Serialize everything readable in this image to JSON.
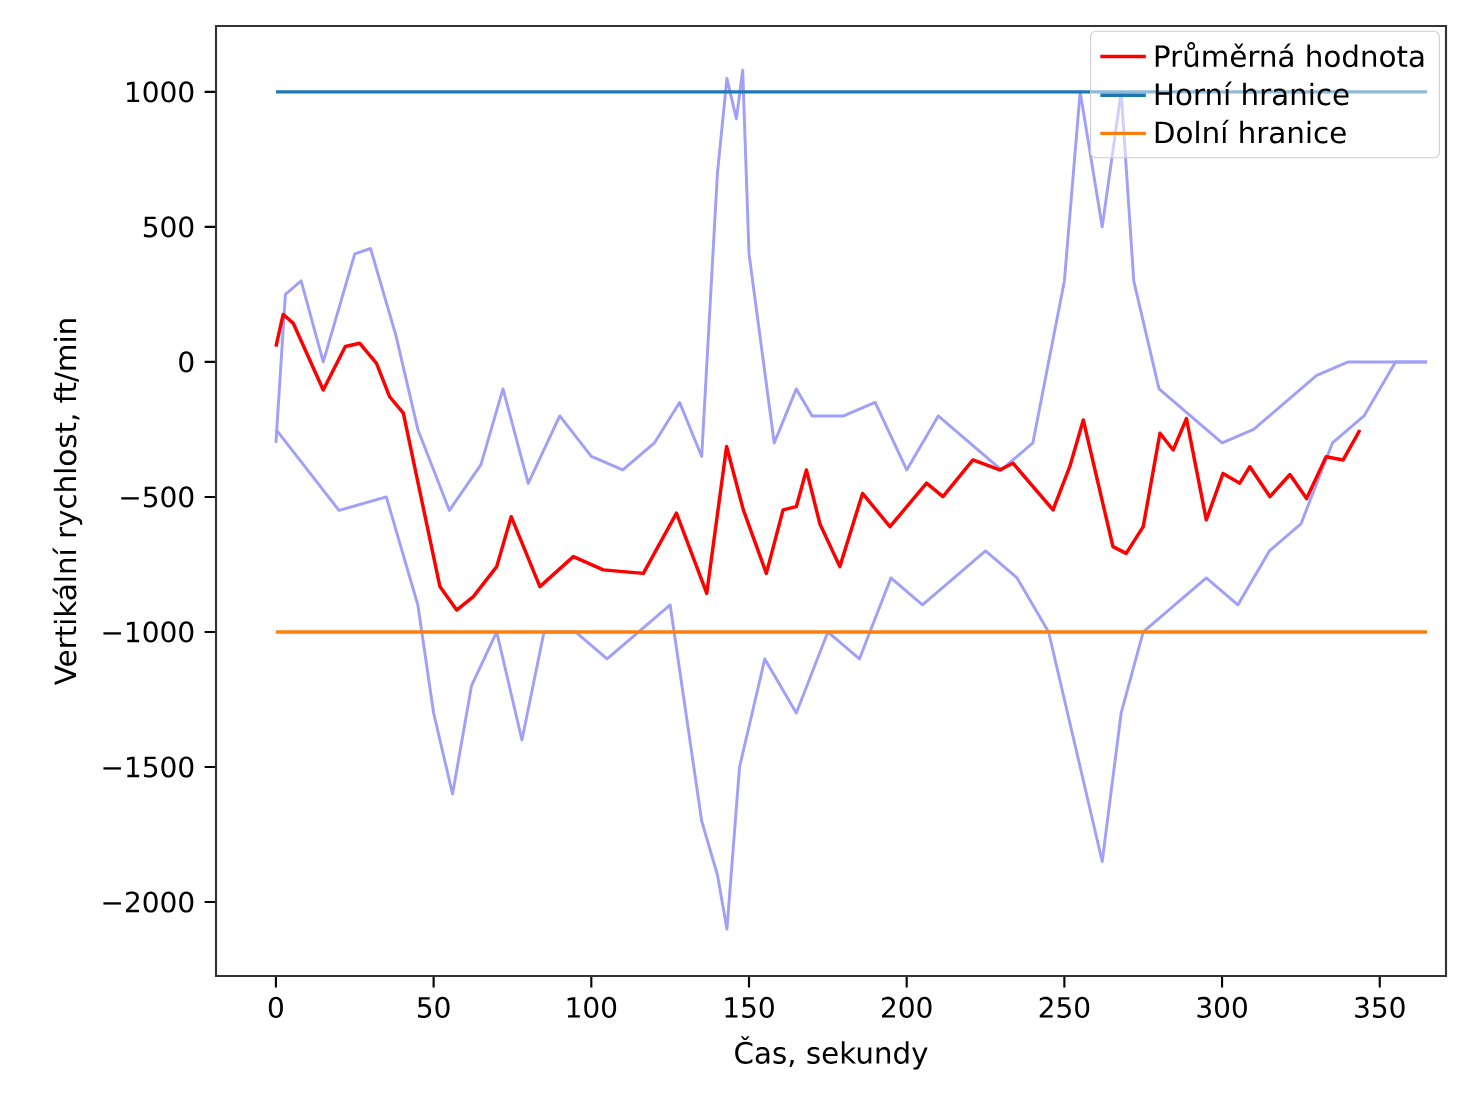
{
  "chart_data": {
    "type": "line",
    "xlabel": "Čas, sekundy",
    "ylabel": "Vertikální rychlost, ft/min",
    "xlim": [
      -19,
      371
    ],
    "ylim": [
      -2274,
      1244
    ],
    "xticks": [
      0,
      50,
      100,
      150,
      200,
      250,
      300,
      350
    ],
    "yticks": [
      {
        "value": -2000,
        "label": "−2000"
      },
      {
        "value": -1500,
        "label": "−1500"
      },
      {
        "value": -1000,
        "label": "−1000"
      },
      {
        "value": -500,
        "label": "−500"
      },
      0,
      500,
      1000
    ],
    "legend": "top right",
    "grid": false,
    "marker": "none",
    "line_style": "solid",
    "series": [
      {
        "color": "#a0a0f8",
        "x": [
          0,
          3,
          8,
          15,
          25,
          30,
          38,
          45,
          55,
          65,
          72,
          80,
          90,
          100,
          110,
          120,
          128,
          135,
          140,
          143,
          146,
          148,
          150,
          158,
          165,
          170,
          180,
          190,
          200,
          210,
          220,
          230,
          240,
          250,
          255,
          262,
          268,
          272,
          280,
          290,
          300,
          310,
          320,
          330,
          340,
          350,
          365
        ],
        "values": [
          -300,
          250,
          300,
          0,
          400,
          420,
          100,
          -250,
          -550,
          -380,
          -100,
          -450,
          -200,
          -350,
          -400,
          -300,
          -150,
          -350,
          700,
          1050,
          900,
          1080,
          400,
          -300,
          -100,
          -200,
          -200,
          -150,
          -400,
          -200,
          -300,
          -400,
          -300,
          300,
          1000,
          500,
          1000,
          300,
          -100,
          -200,
          -300,
          -250,
          -150,
          -50,
          0,
          0,
          0
        ]
      },
      {
        "color": "#a0a0f8",
        "x": [
          0,
          10,
          20,
          35,
          45,
          50,
          56,
          62,
          70,
          78,
          85,
          95,
          105,
          115,
          125,
          130,
          135,
          140,
          143,
          147,
          155,
          165,
          175,
          185,
          195,
          205,
          215,
          225,
          235,
          245,
          255,
          262,
          268,
          275,
          285,
          295,
          305,
          315,
          325,
          335,
          345,
          355,
          365
        ],
        "values": [
          -250,
          -400,
          -550,
          -500,
          -900,
          -1300,
          -1600,
          -1200,
          -1000,
          -1400,
          -1000,
          -1000,
          -1100,
          -1000,
          -900,
          -1300,
          -1700,
          -1900,
          -2100,
          -1500,
          -1100,
          -1300,
          -1000,
          -1100,
          -800,
          -900,
          -800,
          -700,
          -800,
          -1000,
          -1500,
          -1850,
          -1300,
          -1000,
          -900,
          -800,
          -900,
          -700,
          -600,
          -300,
          -200,
          0,
          0
        ]
      },
      {
        "name": "Průměrná hodnota",
        "color": "#ff0000",
        "x": [
          0,
          2.3,
          5.5,
          15,
          22,
          26.6,
          31.9,
          36,
          40.4,
          52,
          57.3,
          62.6,
          70,
          74.6,
          83.7,
          94.3,
          103.8,
          116.5,
          127,
          136.6,
          142.9,
          148.2,
          155.5,
          160.8,
          165,
          168.2,
          172.5,
          178.8,
          186,
          194.7,
          206.3,
          211.5,
          221,
          229.5,
          233.7,
          246.4,
          251.7,
          256,
          265.4,
          269.6,
          275,
          280.3,
          284.5,
          288.7,
          295,
          300.3,
          305.6,
          308.8,
          315.2,
          321.5,
          326.8,
          333,
          338.4,
          343.7
        ],
        "values": [
          57,
          176,
          143,
          -104,
          57,
          69,
          -5,
          -128,
          -190,
          -832,
          -919,
          -869,
          -758,
          -573,
          -832,
          -721,
          -770,
          -783,
          -560,
          -857,
          -313,
          -548,
          -783,
          -548,
          -536,
          -400,
          -600,
          -758,
          -487,
          -610,
          -449,
          -499,
          -363,
          -400,
          -375,
          -548,
          -388,
          -215,
          -684,
          -709,
          -610,
          -264,
          -326,
          -210,
          -585,
          -413,
          -449,
          -388,
          -499,
          -417,
          -506,
          -351,
          -363,
          -252
        ]
      },
      {
        "name": "Horní hranice",
        "color": "#1f77b4",
        "x": [
          0,
          365
        ],
        "values": [
          1000,
          1000
        ]
      },
      {
        "name": "Dolní hranice",
        "color": "#ff7f0e",
        "x": [
          0,
          365
        ],
        "values": [
          -1000,
          -1000
        ]
      }
    ]
  }
}
